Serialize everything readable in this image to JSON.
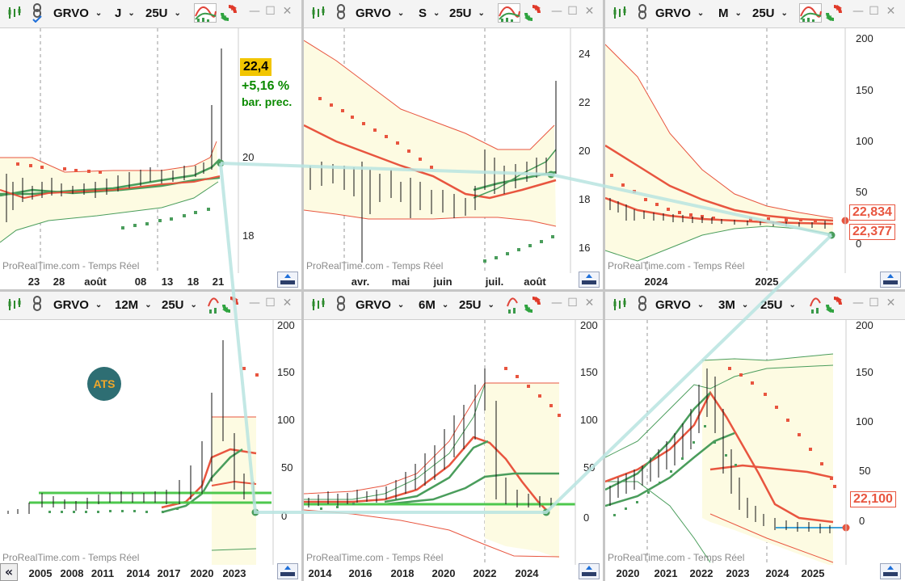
{
  "common": {
    "watermark": "ProRealTime.com - Temps Réel",
    "window_controls": {
      "minimize": "—",
      "maximize": "☐",
      "close": "✕"
    },
    "icons": [
      "candlestick-icon",
      "link-icon",
      "indicator-icon",
      "refresh-icon",
      "scroll-up-icon"
    ]
  },
  "panels": [
    {
      "id": "p1",
      "symbol": "GRVO",
      "timeframe": "J",
      "units": "25U",
      "link_checked": true,
      "x_labels": [
        "23",
        "28",
        "août",
        "08",
        "13",
        "18",
        "21"
      ],
      "y_labels": [
        "20",
        "18"
      ],
      "price_box": "22,4",
      "change": "+5,16 %",
      "change_sub": "bar. prec."
    },
    {
      "id": "p2",
      "symbol": "GRVO",
      "timeframe": "S",
      "units": "25U",
      "x_labels": [
        "avr.",
        "mai",
        "juin",
        "juil.",
        "août"
      ],
      "y_labels": [
        "24",
        "22",
        "20",
        "18",
        "16"
      ]
    },
    {
      "id": "p3",
      "symbol": "GRVO",
      "timeframe": "M",
      "units": "25U",
      "x_labels": [
        "2024",
        "2025"
      ],
      "y_labels": [
        "200",
        "150",
        "100",
        "50",
        "0"
      ],
      "tag_upper": "22,834",
      "tag_lower": "22,377"
    },
    {
      "id": "p4",
      "symbol": "GRVO",
      "timeframe": "12M",
      "units": "25U",
      "x_labels": [
        "2005",
        "2008",
        "2011",
        "2014",
        "2017",
        "2020",
        "2023"
      ],
      "y_labels": [
        "200",
        "150",
        "100",
        "50",
        "0"
      ],
      "logo_text": "ATS",
      "collapse_label": "«"
    },
    {
      "id": "p5",
      "symbol": "GRVO",
      "timeframe": "6M",
      "units": "25U",
      "x_labels": [
        "2014",
        "2016",
        "2018",
        "2020",
        "2022",
        "2024"
      ],
      "y_labels": [
        "200",
        "150",
        "100",
        "50",
        "0"
      ]
    },
    {
      "id": "p6",
      "symbol": "GRVO",
      "timeframe": "3M",
      "units": "25U",
      "x_labels": [
        "2020",
        "2021",
        "2022",
        "2023",
        "2024",
        "2025"
      ],
      "y_labels": [
        "200",
        "150",
        "100",
        "50",
        "0"
      ],
      "tag": "22,100"
    }
  ],
  "colors": {
    "up_green": "#4a9d5c",
    "down_red": "#e8553f",
    "band_fill": "#fdfbe2",
    "connector": "#b8e4e0",
    "price_box_bg": "#f2c500",
    "change_green": "#0a8a00"
  }
}
